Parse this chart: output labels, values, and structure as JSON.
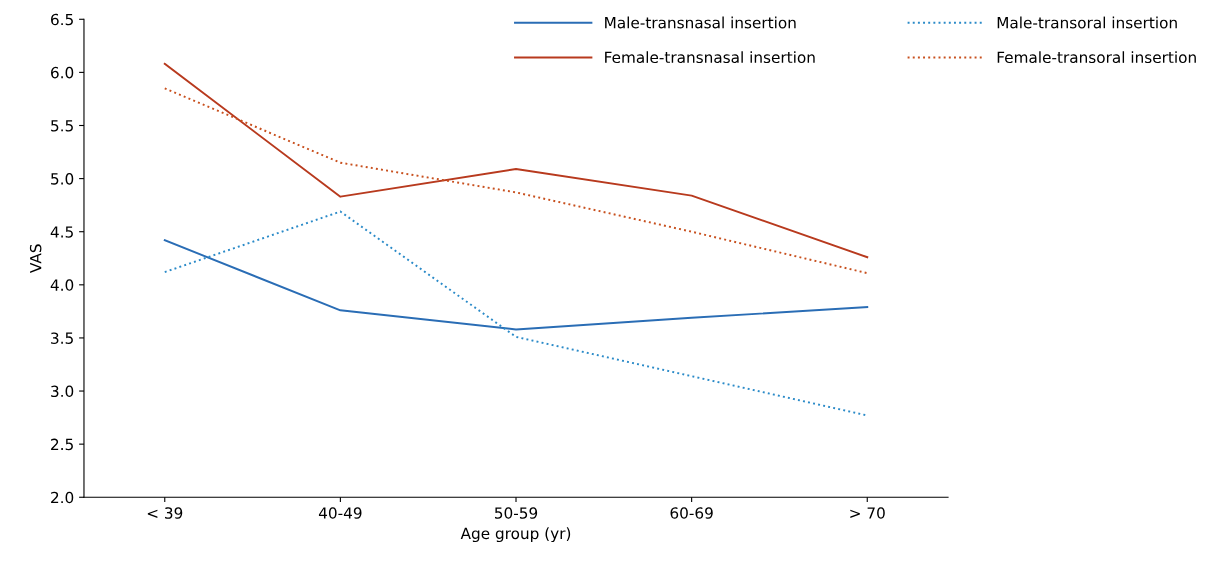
{
  "chart_data": {
    "type": "line",
    "xlabel": "Age group (yr)",
    "ylabel": "VAS",
    "categories": [
      "< 39",
      "40-49",
      "50-59",
      "60-69",
      "> 70"
    ],
    "series": [
      {
        "name": "Male-transnasal insertion",
        "color": "#2a6db5",
        "line_style": "solid",
        "values": [
          4.42,
          3.76,
          3.58,
          3.69,
          3.79
        ]
      },
      {
        "name": "Male-transoral insertion",
        "color": "#2a8ac8",
        "line_style": "dotted",
        "values": [
          4.12,
          4.69,
          3.51,
          3.14,
          2.77
        ]
      },
      {
        "name": "Female-transnasal insertion",
        "color": "#b83a1e",
        "line_style": "solid",
        "values": [
          6.08,
          4.83,
          5.09,
          4.84,
          4.26
        ]
      },
      {
        "name": "Female-transoral insertion",
        "color": "#c8501e",
        "line_style": "dotted",
        "values": [
          5.85,
          5.15,
          4.87,
          4.5,
          4.11
        ]
      }
    ],
    "ylim": [
      2.0,
      6.5
    ],
    "yticks": [
      {
        "value": 2.0,
        "label": "2.0"
      },
      {
        "value": 2.5,
        "label": "2.5"
      },
      {
        "value": 3.0,
        "label": "3.0"
      },
      {
        "value": 3.5,
        "label": "3.5"
      },
      {
        "value": 4.0,
        "label": "4.0"
      },
      {
        "value": 4.5,
        "label": "4.5"
      },
      {
        "value": 5.0,
        "label": "5.0"
      },
      {
        "value": 5.5,
        "label": "5.5"
      },
      {
        "value": 6.0,
        "label": "6.0"
      },
      {
        "value": 6.5,
        "label": "6.5"
      }
    ],
    "grid": false,
    "legend": "top right",
    "marker": "none"
  }
}
